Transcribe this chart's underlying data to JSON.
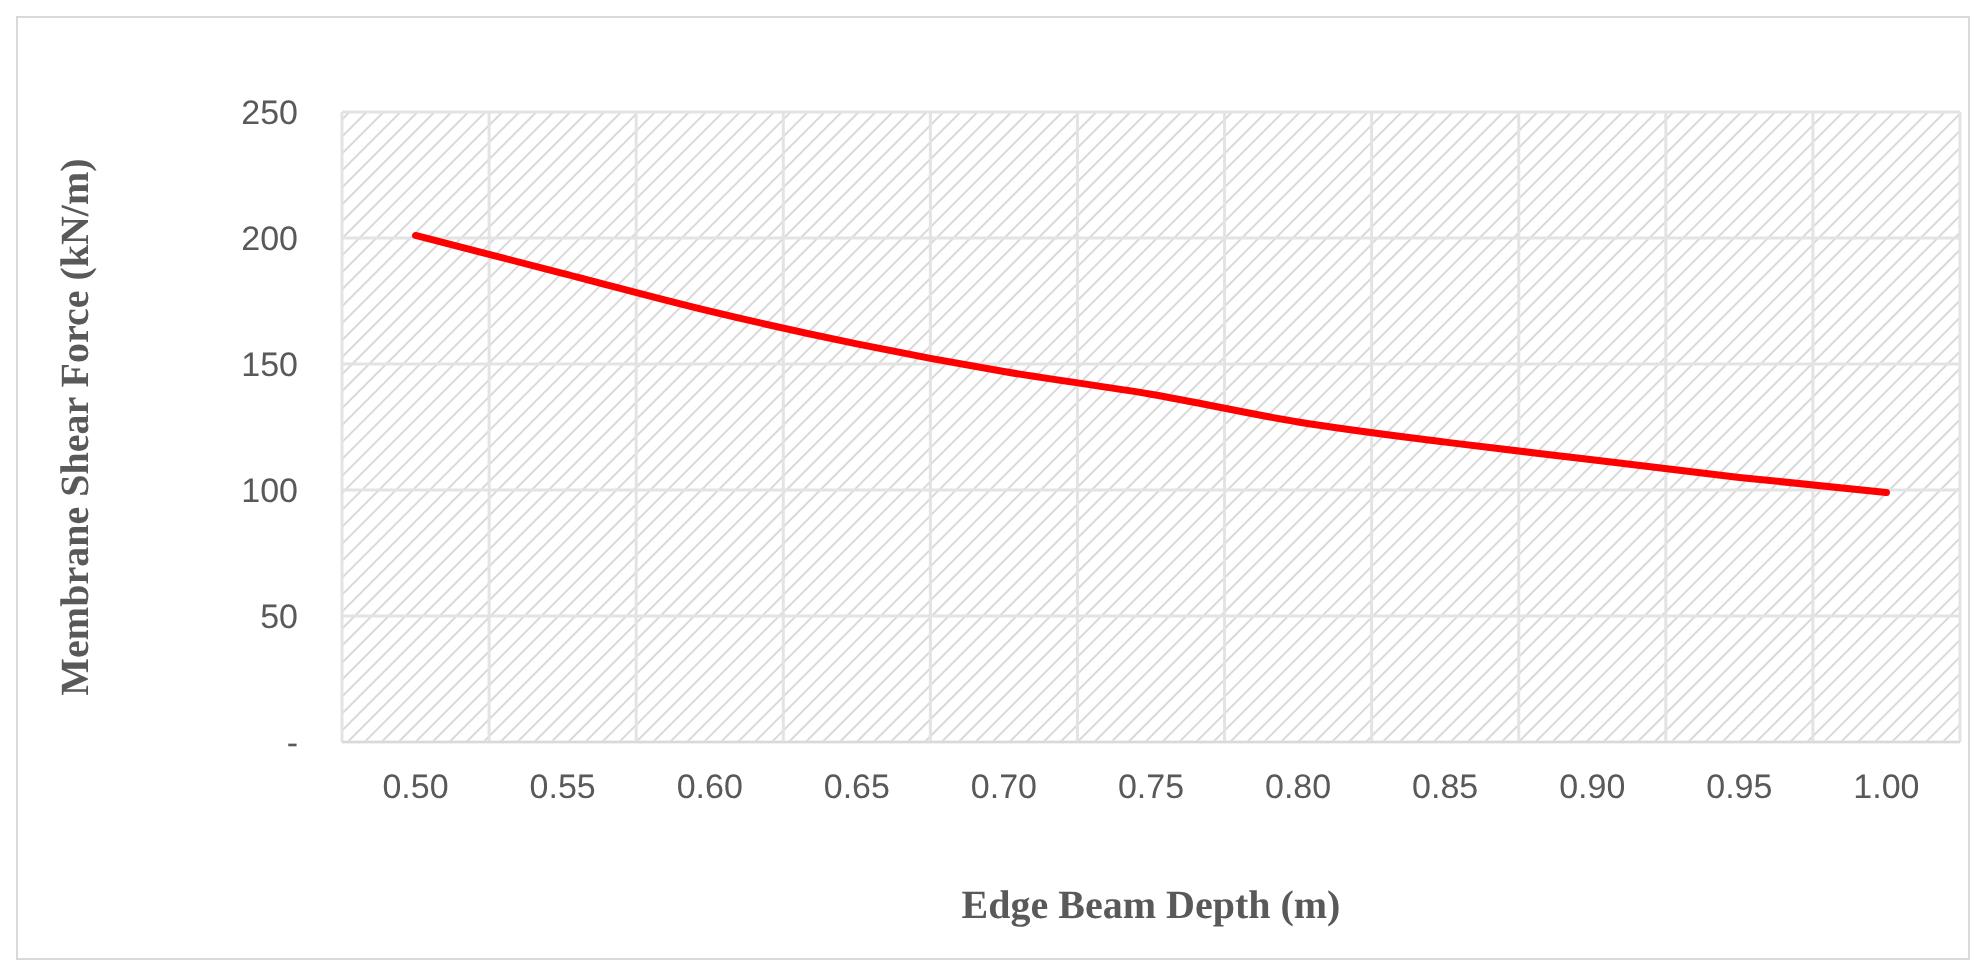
{
  "chart_data": {
    "type": "line",
    "xlabel": "Edge Beam Depth (m)",
    "ylabel": "Membrane Shear Force (kN/m)",
    "categories": [
      "0.50",
      "0.55",
      "0.60",
      "0.65",
      "0.70",
      "0.75",
      "0.80",
      "0.85",
      "0.90",
      "0.95",
      "1.00"
    ],
    "series": [
      {
        "color": "#ff0000",
        "values": [
          201,
          186,
          171,
          158,
          147,
          138,
          127,
          119,
          112,
          105,
          99
        ]
      }
    ],
    "ylim": [
      0,
      250
    ],
    "yticks": [
      {
        "value": 0,
        "label": "-"
      },
      50,
      100,
      150,
      200,
      250
    ],
    "grid": true,
    "marker": "none",
    "line_style": "solid"
  }
}
